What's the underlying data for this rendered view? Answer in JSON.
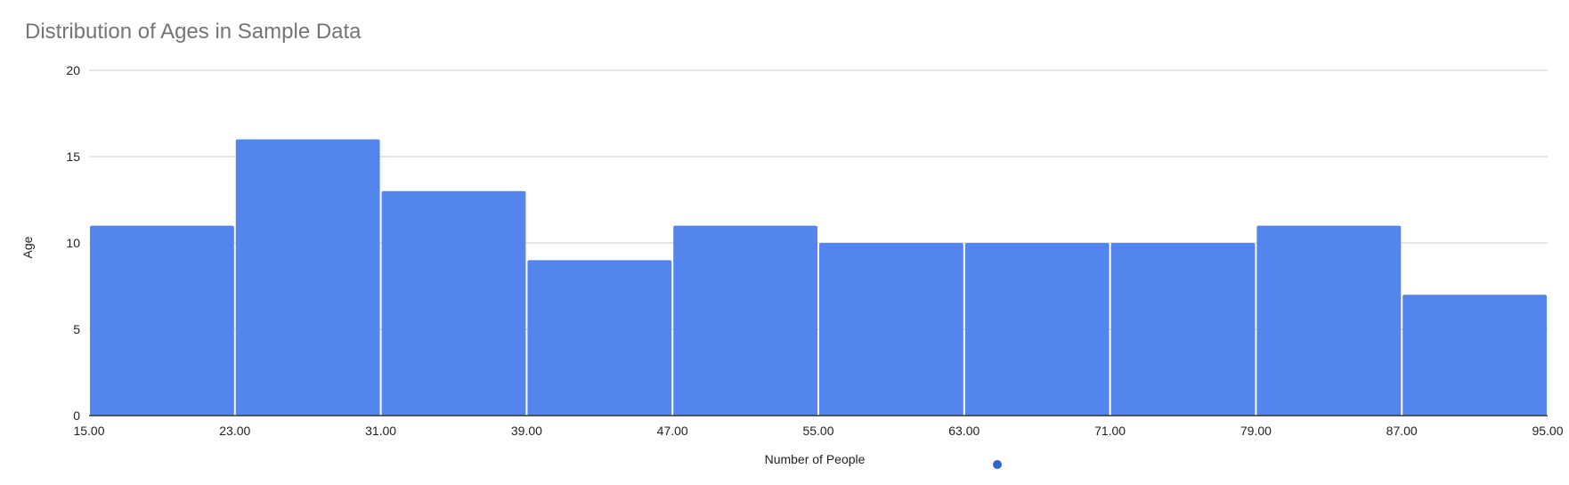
{
  "chart_data": {
    "type": "bar",
    "title": "Distribution of Ages in Sample Data",
    "xlabel": "Number of People",
    "ylabel": "Age",
    "bin_edges": [
      15,
      23,
      31,
      39,
      47,
      55,
      63,
      71,
      79,
      87,
      95
    ],
    "x_tick_labels": [
      "15.00",
      "23.00",
      "31.00",
      "39.00",
      "47.00",
      "55.00",
      "63.00",
      "71.00",
      "79.00",
      "87.00",
      "95.00"
    ],
    "values": [
      11,
      16,
      13,
      9,
      11,
      10,
      10,
      10,
      11,
      7
    ],
    "ylim": [
      0,
      20
    ],
    "y_ticks": [
      0,
      5,
      10,
      15,
      20
    ],
    "xlim": [
      15,
      95
    ],
    "grid": true,
    "legend": "bottom",
    "colors": {
      "bar": "#5385ec",
      "legend_dot": "#3366cc",
      "grid": "#cccccc",
      "axis": "#333333"
    }
  }
}
